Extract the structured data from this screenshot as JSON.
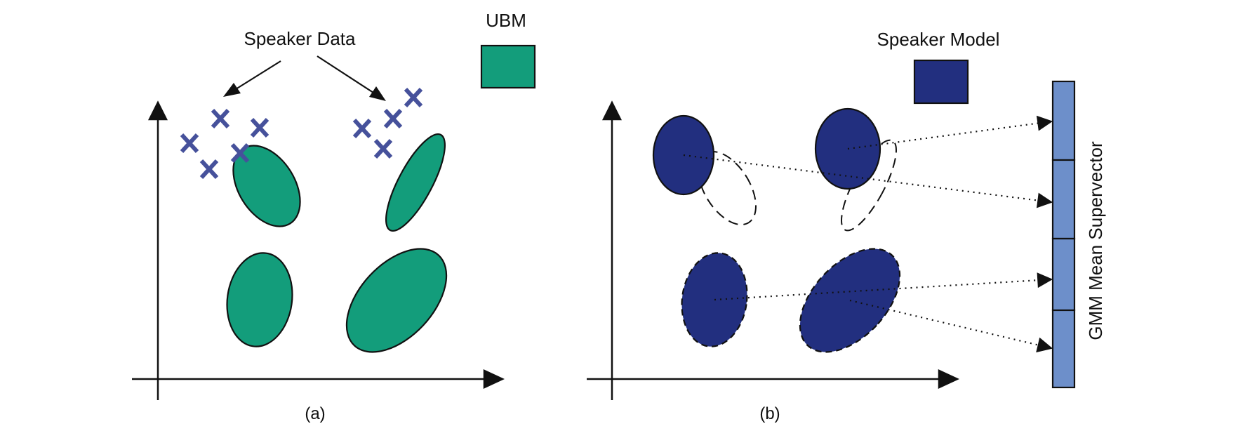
{
  "panel_a": {
    "caption": "(a)",
    "speaker_data_label": "Speaker Data",
    "ubm_legend_label": "UBM"
  },
  "panel_b": {
    "caption": "(b)",
    "speaker_model_legend_label": "Speaker Model",
    "supervector_label": "GMM Mean Supervector"
  },
  "colors": {
    "ubm_green": "#139d7b",
    "speaker_navy": "#222f7f",
    "cross_blue": "#46519b",
    "supervector_blue": "#6d8fca",
    "outline": "#111111"
  }
}
